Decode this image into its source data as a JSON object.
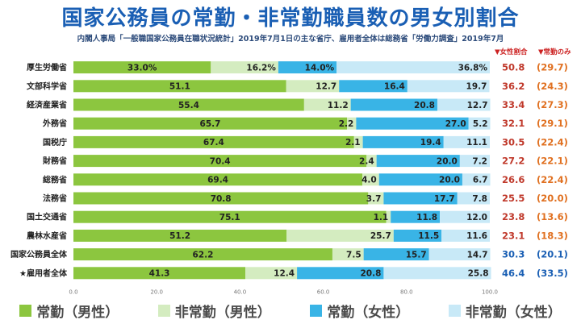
{
  "title": "国家公務員の常勤・非常勤職員数の男女別割合",
  "subtitle": "内閣人事局「一般職国家公務員在職状況統計」2019年7月1日の主な省庁、雇用者全体は総務省「労働力調査」2019年7月",
  "headers": {
    "female_ratio": "▼女性割合",
    "regular_only": "▼常勤のみ"
  },
  "colors": {
    "regular_male": "#8cc63f",
    "nonregular_male": "#d4ecc0",
    "regular_female": "#39b4e6",
    "nonregular_female": "#c8e9f7",
    "female_ratio_text": "#c0392b",
    "regular_only_text": "#e07020",
    "highlight_text": "#1a5fb4"
  },
  "chart_data": {
    "type": "bar",
    "orientation": "horizontal",
    "stacked": true,
    "xlim": [
      0,
      100
    ],
    "xticks": [
      "0.0",
      "20.0",
      "40.0",
      "60.0",
      "80.0",
      "100.0"
    ],
    "categories": [
      "厚生労働省",
      "文部科学省",
      "経済産業省",
      "外務省",
      "国税庁",
      "財務省",
      "総務省",
      "法務省",
      "国土交通省",
      "農林水産省",
      "国家公務員全体",
      "★雇用者全体"
    ],
    "series": [
      {
        "name": "常勤（男性）",
        "values": [
          33.0,
          51.1,
          55.4,
          65.7,
          67.4,
          70.4,
          69.4,
          70.8,
          75.1,
          51.2,
          62.2,
          41.3
        ],
        "labels": [
          "33.0%",
          "51.1",
          "55.4",
          "65.7",
          "67.4",
          "70.4",
          "69.4",
          "70.8",
          "75.1",
          "51.2",
          "62.2",
          "41.3"
        ]
      },
      {
        "name": "非常勤（男性）",
        "values": [
          16.2,
          12.7,
          11.2,
          2.2,
          2.1,
          2.4,
          4.0,
          3.7,
          1.1,
          25.7,
          7.5,
          12.4
        ],
        "labels": [
          "16.2%",
          "12.7",
          "11.2",
          "2.2",
          "2.1",
          "2.4",
          "4.0",
          "3.7",
          "1.1",
          "25.7",
          "7.5",
          "12.4"
        ]
      },
      {
        "name": "常勤（女性）",
        "values": [
          14.0,
          16.4,
          20.8,
          27.0,
          19.4,
          20.0,
          20.0,
          17.7,
          11.8,
          11.5,
          15.7,
          20.8
        ],
        "labels": [
          "14.0%",
          "16.4",
          "20.8",
          "27.0",
          "19.4",
          "20.0",
          "20.0",
          "17.7",
          "11.8",
          "11.5",
          "15.7",
          "20.8"
        ]
      },
      {
        "name": "非常勤（女性）",
        "values": [
          36.8,
          19.7,
          12.7,
          5.2,
          11.1,
          7.2,
          6.7,
          7.8,
          12.0,
          11.6,
          14.7,
          25.8
        ],
        "labels": [
          "36.8%",
          "19.7",
          "12.7",
          "5.2",
          "11.1",
          "7.2",
          "6.7",
          "7.8",
          "12.0",
          "11.6",
          "14.7",
          "25.8"
        ]
      }
    ],
    "female_ratio": [
      "50.8",
      "36.2",
      "33.4",
      "32.1",
      "30.5",
      "27.2",
      "26.6",
      "25.5",
      "23.8",
      "23.1",
      "30.3",
      "46.4"
    ],
    "regular_only": [
      "(29.7)",
      "(24.3)",
      "(27.3)",
      "(29.1)",
      "(22.4)",
      "(22.1)",
      "(22.4)",
      "(20.0)",
      "(13.6)",
      "(18.3)",
      "(20.1)",
      "(33.5)"
    ],
    "highlight_rows": [
      10,
      11
    ]
  }
}
